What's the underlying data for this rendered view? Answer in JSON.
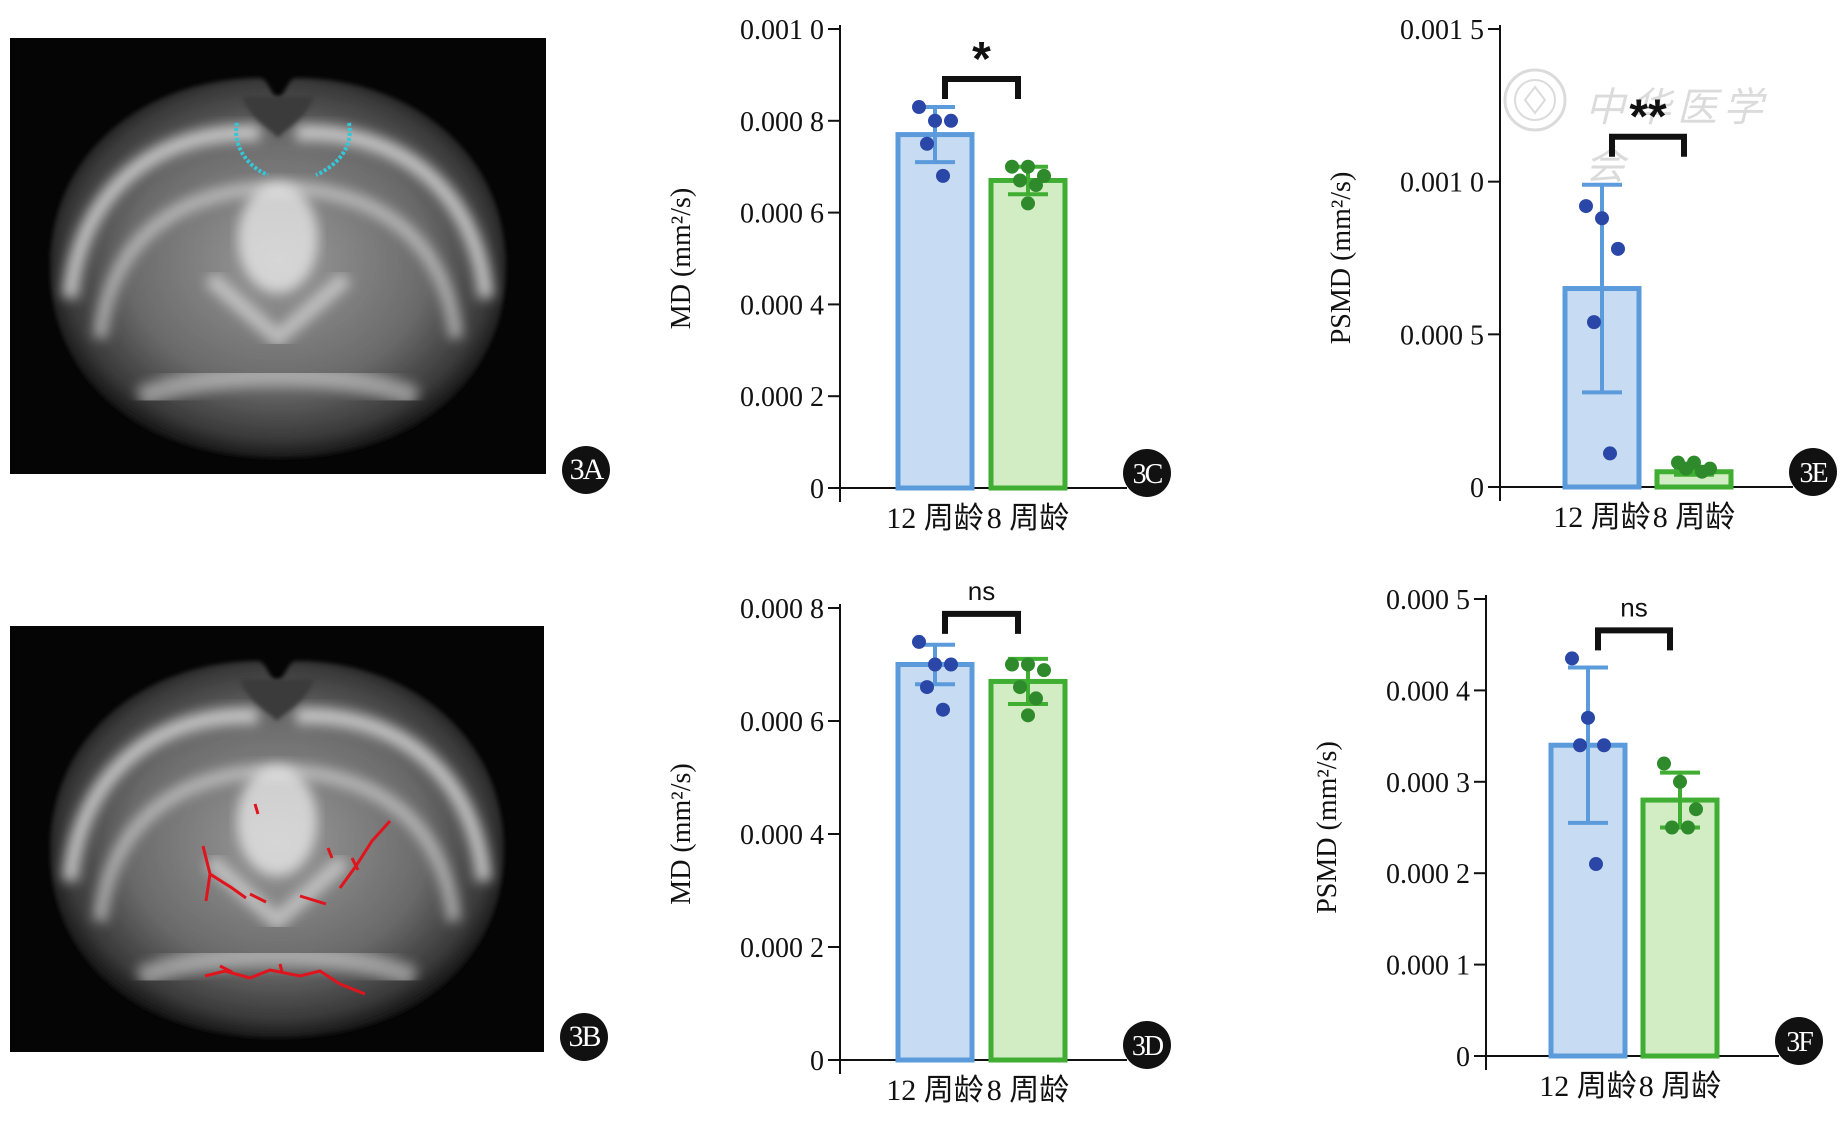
{
  "panels": {
    "a": {
      "badge": "3A",
      "highlight_color": "#35c6d8"
    },
    "b": {
      "badge": "3B",
      "highlight_color": "#e0141c"
    }
  },
  "watermark": {
    "text": "中华医学会"
  },
  "colors": {
    "blue_fill": "#c7dcf2",
    "blue_stroke": "#5b9bdb",
    "blue_dot": "#2a47a8",
    "green_fill": "#d2ecc4",
    "green_stroke": "#3fae32",
    "green_dot": "#2e8a2a"
  },
  "chart_data": [
    {
      "id": "3C",
      "type": "bar",
      "ylabel": "MD (mm²/s)",
      "categories": [
        "12 周龄",
        "8 周龄"
      ],
      "values": [
        0.00077,
        0.00067
      ],
      "error": [
        6e-05,
        3e-05
      ],
      "points": [
        [
          0.00083,
          0.0008,
          0.0008,
          0.00075,
          0.00068
        ],
        [
          0.0007,
          0.0007,
          0.00068,
          0.00067,
          0.00066,
          0.00062
        ]
      ],
      "ylim": [
        0,
        0.001
      ],
      "ticks": [
        0,
        0.0002,
        0.0004,
        0.0006,
        0.0008,
        0.001
      ],
      "tick_labels": [
        "0",
        "0.000 2",
        "0.000 4",
        "0.000 6",
        "0.000 8",
        "0.001 0"
      ],
      "significance": "*"
    },
    {
      "id": "3D",
      "type": "bar",
      "ylabel": "MD (mm²/s)",
      "categories": [
        "12 周龄",
        "8 周龄"
      ],
      "values": [
        0.0007,
        0.00067
      ],
      "error": [
        3.5e-05,
        4e-05
      ],
      "points": [
        [
          0.00074,
          0.0007,
          0.0007,
          0.00066,
          0.00062
        ],
        [
          0.0007,
          0.0007,
          0.00069,
          0.00066,
          0.00064,
          0.00061
        ]
      ],
      "ylim": [
        0,
        0.0008
      ],
      "ticks": [
        0,
        0.0002,
        0.0004,
        0.0006,
        0.0008
      ],
      "tick_labels": [
        "0",
        "0.000 2",
        "0.000 4",
        "0.000 6",
        "0.000 8"
      ],
      "significance": "ns"
    },
    {
      "id": "3E",
      "type": "bar",
      "ylabel": "PSMD (mm²/s)",
      "categories": [
        "12 周龄",
        "8 周龄"
      ],
      "values": [
        0.00065,
        5e-05
      ],
      "error": [
        0.00034,
        1e-05
      ],
      "points": [
        [
          0.00092,
          0.00088,
          0.00078,
          0.00054,
          0.00011
        ],
        [
          8e-05,
          8e-05,
          6e-05,
          6e-05,
          5e-05
        ]
      ],
      "ylim": [
        0,
        0.0015
      ],
      "ticks": [
        0,
        0.0005,
        0.001,
        0.0015
      ],
      "tick_labels": [
        "0",
        "0.000 5",
        "0.001 0",
        "0.001 5"
      ],
      "significance": "**"
    },
    {
      "id": "3F",
      "type": "bar",
      "ylabel": "PSMD (mm²/s)",
      "categories": [
        "12 周龄",
        "8 周龄"
      ],
      "values": [
        0.00034,
        0.00028
      ],
      "error": [
        8.5e-05,
        3e-05
      ],
      "points": [
        [
          0.000435,
          0.00037,
          0.00034,
          0.00034,
          0.00021
        ],
        [
          0.00032,
          0.0003,
          0.00027,
          0.00025,
          0.00025
        ]
      ],
      "ylim": [
        0,
        0.0005
      ],
      "ticks": [
        0,
        0.0001,
        0.0002,
        0.0003,
        0.0004,
        0.0005
      ],
      "tick_labels": [
        "0",
        "0.000 1",
        "0.000 2",
        "0.000 3",
        "0.000 4",
        "0.000 5"
      ],
      "significance": "ns"
    }
  ]
}
